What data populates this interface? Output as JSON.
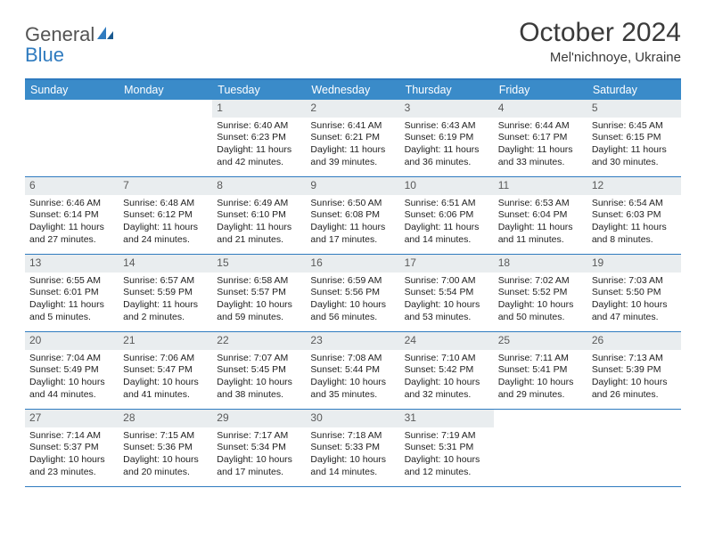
{
  "brand": {
    "part1": "General",
    "part2": "Blue"
  },
  "title": {
    "month": "October 2024",
    "location": "Mel'nichnoye, Ukraine"
  },
  "colors": {
    "accent": "#2f7bbf",
    "headerBg": "#3a8bc9",
    "dayBar": "#e9edef"
  },
  "dayNames": [
    "Sunday",
    "Monday",
    "Tuesday",
    "Wednesday",
    "Thursday",
    "Friday",
    "Saturday"
  ],
  "weeks": [
    [
      {
        "n": "",
        "sunrise": "",
        "sunset": "",
        "daylight": ""
      },
      {
        "n": "",
        "sunrise": "",
        "sunset": "",
        "daylight": ""
      },
      {
        "n": "1",
        "sunrise": "Sunrise: 6:40 AM",
        "sunset": "Sunset: 6:23 PM",
        "daylight": "Daylight: 11 hours and 42 minutes."
      },
      {
        "n": "2",
        "sunrise": "Sunrise: 6:41 AM",
        "sunset": "Sunset: 6:21 PM",
        "daylight": "Daylight: 11 hours and 39 minutes."
      },
      {
        "n": "3",
        "sunrise": "Sunrise: 6:43 AM",
        "sunset": "Sunset: 6:19 PM",
        "daylight": "Daylight: 11 hours and 36 minutes."
      },
      {
        "n": "4",
        "sunrise": "Sunrise: 6:44 AM",
        "sunset": "Sunset: 6:17 PM",
        "daylight": "Daylight: 11 hours and 33 minutes."
      },
      {
        "n": "5",
        "sunrise": "Sunrise: 6:45 AM",
        "sunset": "Sunset: 6:15 PM",
        "daylight": "Daylight: 11 hours and 30 minutes."
      }
    ],
    [
      {
        "n": "6",
        "sunrise": "Sunrise: 6:46 AM",
        "sunset": "Sunset: 6:14 PM",
        "daylight": "Daylight: 11 hours and 27 minutes."
      },
      {
        "n": "7",
        "sunrise": "Sunrise: 6:48 AM",
        "sunset": "Sunset: 6:12 PM",
        "daylight": "Daylight: 11 hours and 24 minutes."
      },
      {
        "n": "8",
        "sunrise": "Sunrise: 6:49 AM",
        "sunset": "Sunset: 6:10 PM",
        "daylight": "Daylight: 11 hours and 21 minutes."
      },
      {
        "n": "9",
        "sunrise": "Sunrise: 6:50 AM",
        "sunset": "Sunset: 6:08 PM",
        "daylight": "Daylight: 11 hours and 17 minutes."
      },
      {
        "n": "10",
        "sunrise": "Sunrise: 6:51 AM",
        "sunset": "Sunset: 6:06 PM",
        "daylight": "Daylight: 11 hours and 14 minutes."
      },
      {
        "n": "11",
        "sunrise": "Sunrise: 6:53 AM",
        "sunset": "Sunset: 6:04 PM",
        "daylight": "Daylight: 11 hours and 11 minutes."
      },
      {
        "n": "12",
        "sunrise": "Sunrise: 6:54 AM",
        "sunset": "Sunset: 6:03 PM",
        "daylight": "Daylight: 11 hours and 8 minutes."
      }
    ],
    [
      {
        "n": "13",
        "sunrise": "Sunrise: 6:55 AM",
        "sunset": "Sunset: 6:01 PM",
        "daylight": "Daylight: 11 hours and 5 minutes."
      },
      {
        "n": "14",
        "sunrise": "Sunrise: 6:57 AM",
        "sunset": "Sunset: 5:59 PM",
        "daylight": "Daylight: 11 hours and 2 minutes."
      },
      {
        "n": "15",
        "sunrise": "Sunrise: 6:58 AM",
        "sunset": "Sunset: 5:57 PM",
        "daylight": "Daylight: 10 hours and 59 minutes."
      },
      {
        "n": "16",
        "sunrise": "Sunrise: 6:59 AM",
        "sunset": "Sunset: 5:56 PM",
        "daylight": "Daylight: 10 hours and 56 minutes."
      },
      {
        "n": "17",
        "sunrise": "Sunrise: 7:00 AM",
        "sunset": "Sunset: 5:54 PM",
        "daylight": "Daylight: 10 hours and 53 minutes."
      },
      {
        "n": "18",
        "sunrise": "Sunrise: 7:02 AM",
        "sunset": "Sunset: 5:52 PM",
        "daylight": "Daylight: 10 hours and 50 minutes."
      },
      {
        "n": "19",
        "sunrise": "Sunrise: 7:03 AM",
        "sunset": "Sunset: 5:50 PM",
        "daylight": "Daylight: 10 hours and 47 minutes."
      }
    ],
    [
      {
        "n": "20",
        "sunrise": "Sunrise: 7:04 AM",
        "sunset": "Sunset: 5:49 PM",
        "daylight": "Daylight: 10 hours and 44 minutes."
      },
      {
        "n": "21",
        "sunrise": "Sunrise: 7:06 AM",
        "sunset": "Sunset: 5:47 PM",
        "daylight": "Daylight: 10 hours and 41 minutes."
      },
      {
        "n": "22",
        "sunrise": "Sunrise: 7:07 AM",
        "sunset": "Sunset: 5:45 PM",
        "daylight": "Daylight: 10 hours and 38 minutes."
      },
      {
        "n": "23",
        "sunrise": "Sunrise: 7:08 AM",
        "sunset": "Sunset: 5:44 PM",
        "daylight": "Daylight: 10 hours and 35 minutes."
      },
      {
        "n": "24",
        "sunrise": "Sunrise: 7:10 AM",
        "sunset": "Sunset: 5:42 PM",
        "daylight": "Daylight: 10 hours and 32 minutes."
      },
      {
        "n": "25",
        "sunrise": "Sunrise: 7:11 AM",
        "sunset": "Sunset: 5:41 PM",
        "daylight": "Daylight: 10 hours and 29 minutes."
      },
      {
        "n": "26",
        "sunrise": "Sunrise: 7:13 AM",
        "sunset": "Sunset: 5:39 PM",
        "daylight": "Daylight: 10 hours and 26 minutes."
      }
    ],
    [
      {
        "n": "27",
        "sunrise": "Sunrise: 7:14 AM",
        "sunset": "Sunset: 5:37 PM",
        "daylight": "Daylight: 10 hours and 23 minutes."
      },
      {
        "n": "28",
        "sunrise": "Sunrise: 7:15 AM",
        "sunset": "Sunset: 5:36 PM",
        "daylight": "Daylight: 10 hours and 20 minutes."
      },
      {
        "n": "29",
        "sunrise": "Sunrise: 7:17 AM",
        "sunset": "Sunset: 5:34 PM",
        "daylight": "Daylight: 10 hours and 17 minutes."
      },
      {
        "n": "30",
        "sunrise": "Sunrise: 7:18 AM",
        "sunset": "Sunset: 5:33 PM",
        "daylight": "Daylight: 10 hours and 14 minutes."
      },
      {
        "n": "31",
        "sunrise": "Sunrise: 7:19 AM",
        "sunset": "Sunset: 5:31 PM",
        "daylight": "Daylight: 10 hours and 12 minutes."
      },
      {
        "n": "",
        "sunrise": "",
        "sunset": "",
        "daylight": ""
      },
      {
        "n": "",
        "sunrise": "",
        "sunset": "",
        "daylight": ""
      }
    ]
  ]
}
